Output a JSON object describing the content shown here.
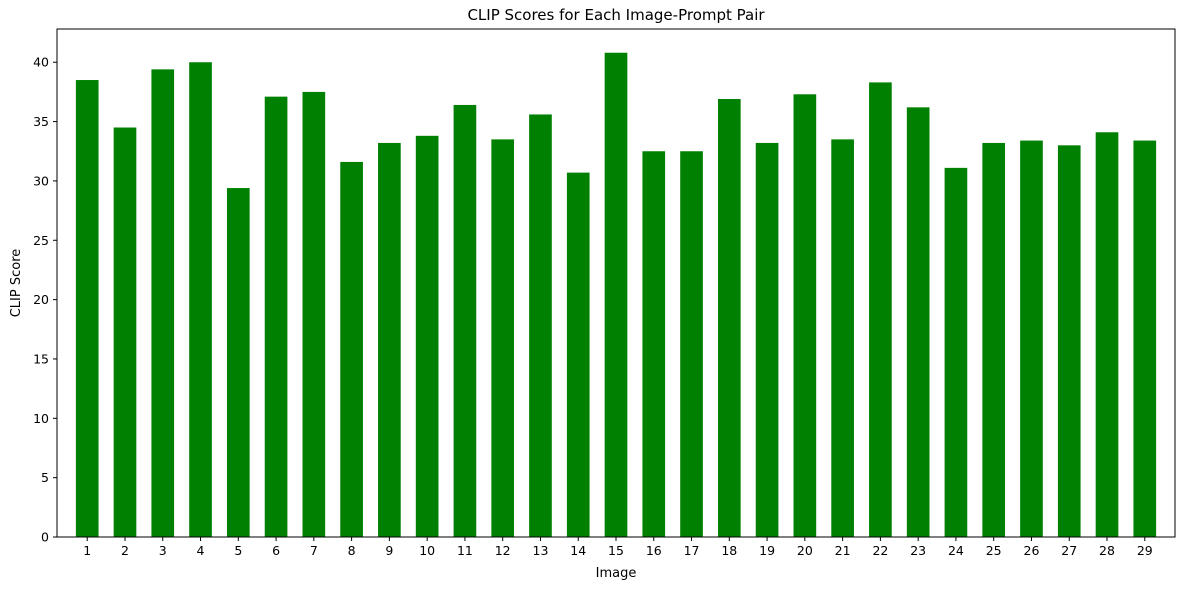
{
  "chart_data": {
    "type": "bar",
    "title": "CLIP Scores for Each Image-Prompt Pair",
    "xlabel": "Image",
    "ylabel": "CLIP Score",
    "categories": [
      "1",
      "2",
      "3",
      "4",
      "5",
      "6",
      "7",
      "8",
      "9",
      "10",
      "11",
      "12",
      "13",
      "14",
      "15",
      "16",
      "17",
      "18",
      "19",
      "20",
      "21",
      "22",
      "23",
      "24",
      "25",
      "26",
      "27",
      "28",
      "29"
    ],
    "values": [
      38.5,
      34.5,
      39.4,
      40.0,
      29.4,
      37.1,
      37.5,
      31.6,
      33.2,
      33.8,
      36.4,
      33.5,
      35.6,
      30.7,
      40.8,
      32.5,
      32.5,
      36.9,
      33.2,
      37.3,
      33.5,
      38.3,
      36.2,
      31.1,
      33.2,
      33.4,
      33.0,
      34.1,
      33.4
    ],
    "ylim": [
      0,
      42.8
    ],
    "yticks": [
      0,
      5,
      10,
      15,
      20,
      25,
      30,
      35,
      40
    ],
    "bar_color": "#008000",
    "grid": false
  }
}
